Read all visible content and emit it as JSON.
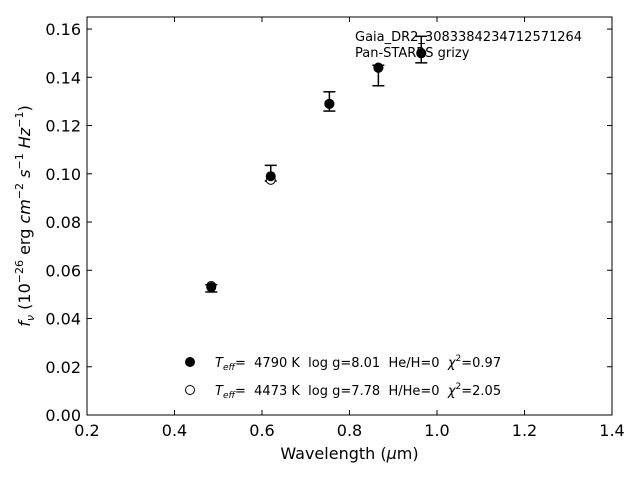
{
  "chart_data": {
    "type": "scatter",
    "xlabel": "Wavelength (µm)",
    "ylabel": "f_ν (10^-26 erg cm^-2 s^-1 Hz^-1)",
    "xlim": [
      0.2,
      1.4
    ],
    "ylim": [
      0.0,
      0.165
    ],
    "x_ticks": [
      0.2,
      0.4,
      0.6,
      0.8,
      1.0,
      1.2,
      1.4
    ],
    "x_tick_labels": [
      "0.2",
      "0.4",
      "0.6",
      "0.8",
      "1.0",
      "1.2",
      "1.4"
    ],
    "y_ticks": [
      0.0,
      0.02,
      0.04,
      0.06,
      0.08,
      0.1,
      0.12,
      0.14,
      0.16
    ],
    "y_tick_labels": [
      "0.00",
      "0.02",
      "0.04",
      "0.06",
      "0.08",
      "0.10",
      "0.12",
      "0.14",
      "0.16"
    ],
    "grid": false,
    "annotations": [
      "Gaia_DR2_3083384234712571264",
      "Pan-STARRS grizy"
    ],
    "observed": [
      {
        "x": 0.484,
        "y": 0.053,
        "ylo": 0.051,
        "yhi": 0.054
      },
      {
        "x": 0.62,
        "y": 0.0985,
        "ylo": 0.097,
        "yhi": 0.1035
      },
      {
        "x": 0.754,
        "y": 0.129,
        "ylo": 0.126,
        "yhi": 0.134
      },
      {
        "x": 0.866,
        "y": 0.144,
        "ylo": 0.1365,
        "yhi": 0.145
      },
      {
        "x": 0.964,
        "y": 0.15,
        "ylo": 0.146,
        "yhi": 0.157
      }
    ],
    "series": [
      {
        "marker": "filled-circle",
        "label_parts": {
          "t": "T",
          "sub": "eff",
          "rest": "=  4790 K  log g=8.01  He/H=0  ",
          "chi": "χ",
          "sup": "2",
          "val": "=0.97"
        },
        "points": [
          {
            "x": 0.484,
            "y": 0.053
          },
          {
            "x": 0.62,
            "y": 0.099
          },
          {
            "x": 0.754,
            "y": 0.129
          },
          {
            "x": 0.866,
            "y": 0.144
          },
          {
            "x": 0.964,
            "y": 0.15
          }
        ]
      },
      {
        "marker": "open-circle",
        "label_parts": {
          "t": "T",
          "sub": "eff",
          "rest": "=  4473 K  log g=7.78  H/He=0  ",
          "chi": "χ",
          "sup": "2",
          "val": "=2.05"
        },
        "points": [
          {
            "x": 0.484,
            "y": 0.0535
          },
          {
            "x": 0.62,
            "y": 0.0975
          },
          {
            "x": 0.754,
            "y": 0.129
          },
          {
            "x": 0.866,
            "y": 0.144
          },
          {
            "x": 0.964,
            "y": 0.15
          }
        ]
      }
    ],
    "legend_placement": "lower-center"
  }
}
